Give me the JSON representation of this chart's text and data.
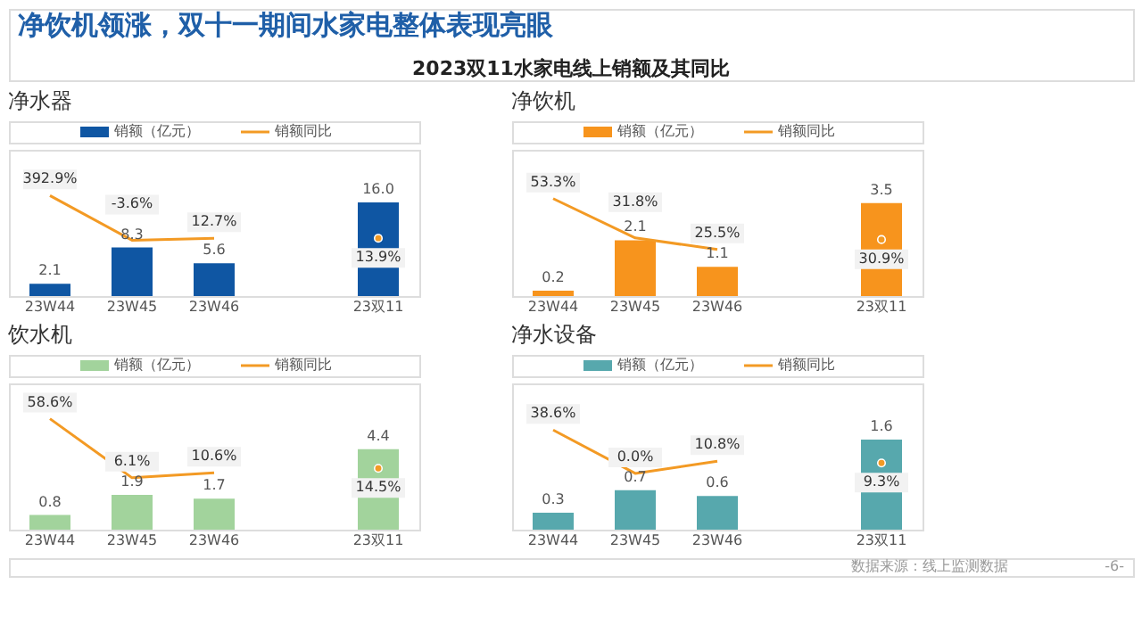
{
  "chart_data": [
    {
      "type": "other",
      "title": "净饮机领涨，双十一期间水家电整体表现亮眼",
      "subtitle": "2023双11水家电线上销额及其同比",
      "annotations": [
        "数据来源：线上监测数据",
        "-6-"
      ]
    },
    {
      "type": "bar",
      "title": "净水器",
      "categories": [
        "23W44",
        "23W45",
        "23W46",
        null,
        "23双11"
      ],
      "legend": "top",
      "tick_labels": "x",
      "ylim": [
        0,
        25
      ],
      "y2lim": [
        -500,
        800
      ],
      "series": [
        {
          "name": "销额（亿元）",
          "color": "#0f56a3",
          "values": [
            2.1,
            8.3,
            5.6,
            null,
            16.0
          ],
          "value_labels": [
            "2.1",
            "8.3",
            "5.6",
            null,
            "16.0"
          ]
        },
        {
          "name": "销额同比",
          "type": "line",
          "axis": "y2",
          "color": "#f39a24",
          "values": [
            392.9,
            -3.6,
            12.7,
            null,
            13.9
          ],
          "value_labels": [
            "392.9%",
            "-3.6%",
            "12.7%",
            null,
            "13.9%"
          ]
        }
      ]
    },
    {
      "type": "bar",
      "title": "净饮机",
      "categories": [
        "23W44",
        "23W45",
        "23W46",
        null,
        "23双11"
      ],
      "legend": "top",
      "tick_labels": "x",
      "ylim": [
        0,
        5.5
      ],
      "y2lim": [
        0,
        80
      ],
      "series": [
        {
          "name": "销额（亿元）",
          "color": "#f7941d",
          "values": [
            0.2,
            2.1,
            1.1,
            null,
            3.5
          ],
          "value_labels": [
            "0.2",
            "2.1",
            "1.1",
            null,
            "3.5"
          ]
        },
        {
          "name": "销额同比",
          "type": "line",
          "axis": "y2",
          "color": "#f39a24",
          "values": [
            53.3,
            31.8,
            25.5,
            null,
            30.9
          ],
          "value_labels": [
            "53.3%",
            "31.8%",
            "25.5%",
            null,
            "30.9%"
          ]
        }
      ]
    },
    {
      "type": "bar",
      "title": "饮水机",
      "categories": [
        "23W44",
        "23W45",
        "23W46",
        null,
        "23双11"
      ],
      "legend": "top",
      "tick_labels": "x",
      "ylim": [
        0,
        8
      ],
      "y2lim": [
        -40,
        90
      ],
      "series": [
        {
          "name": "销额（亿元）",
          "color": "#a2d39c",
          "values": [
            0.8,
            1.9,
            1.7,
            null,
            4.4
          ],
          "value_labels": [
            "0.8",
            "1.9",
            "1.7",
            null,
            "4.4"
          ]
        },
        {
          "name": "销额同比",
          "type": "line",
          "axis": "y2",
          "color": "#f39a24",
          "values": [
            58.6,
            6.1,
            10.6,
            null,
            14.5
          ],
          "value_labels": [
            "58.6%",
            "6.1%",
            "10.6%",
            null,
            "14.5%"
          ]
        }
      ]
    },
    {
      "type": "bar",
      "title": "净水设备",
      "categories": [
        "23W44",
        "23W45",
        "23W46",
        null,
        "23双11"
      ],
      "legend": "top",
      "tick_labels": "x",
      "ylim": [
        0,
        2.6
      ],
      "y2lim": [
        -50,
        80
      ],
      "series": [
        {
          "name": "销额（亿元）",
          "color": "#57a8ad",
          "values": [
            0.3,
            0.7,
            0.6,
            null,
            1.6
          ],
          "value_labels": [
            "0.3",
            "0.7",
            "0.6",
            null,
            "1.6"
          ]
        },
        {
          "name": "销额同比",
          "type": "line",
          "axis": "y2",
          "color": "#f39a24",
          "values": [
            38.6,
            0.0,
            10.8,
            null,
            9.3
          ],
          "value_labels": [
            "38.6%",
            "0.0%",
            "10.8%",
            null,
            "9.3%"
          ]
        }
      ]
    }
  ]
}
